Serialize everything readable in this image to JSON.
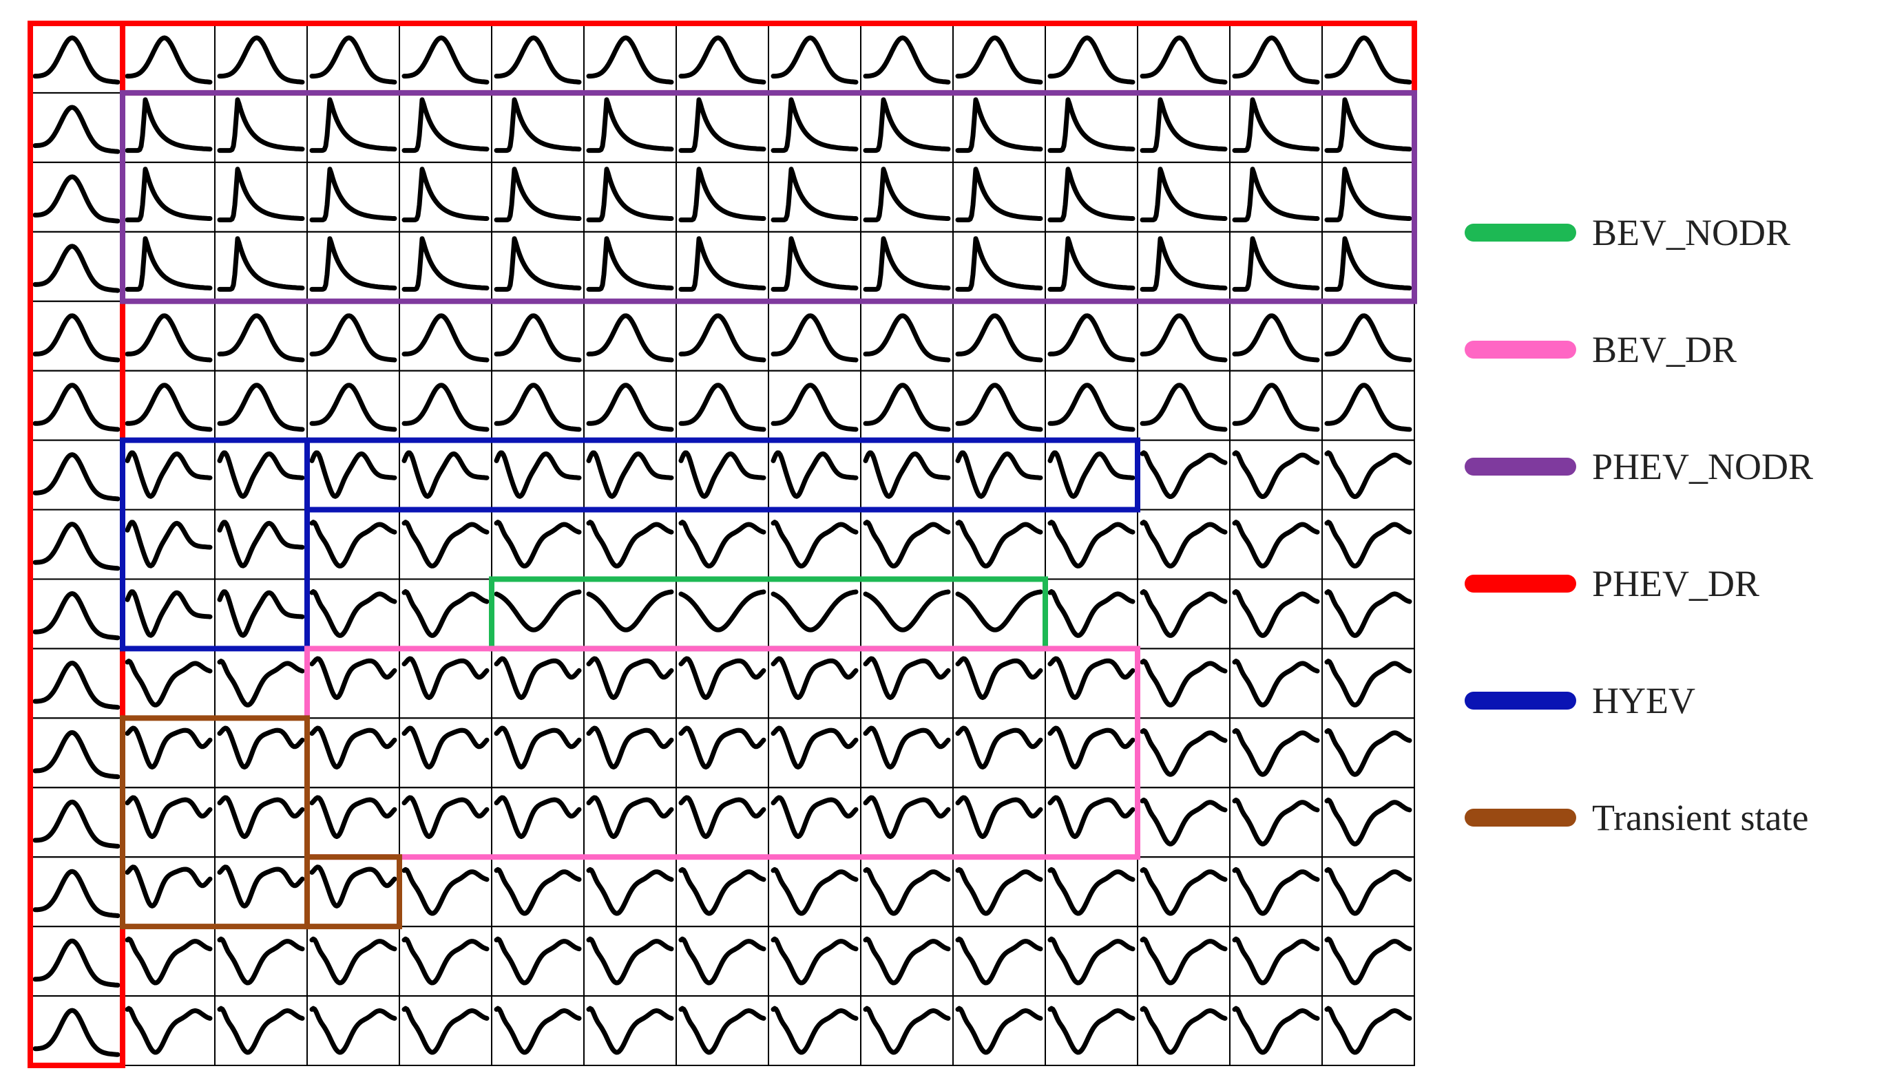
{
  "grid": {
    "columns": 15,
    "rows": 15,
    "line_color": "#000000"
  },
  "regions": [
    {
      "class": "PHEV_DR",
      "color": "#ff0000",
      "col_start": 0,
      "col_end": 1,
      "row_start": 0,
      "row_end": 15
    },
    {
      "class": "PHEV_DR",
      "color": "#ff0000",
      "col_start": 1,
      "col_end": 15,
      "row_start": 0,
      "row_end": 1
    },
    {
      "class": "PHEV_NODR",
      "color": "#7f3a9e",
      "col_start": 1,
      "col_end": 15,
      "row_start": 1,
      "row_end": 4
    },
    {
      "class": "HYEV",
      "color": "#0a14b4",
      "col_start": 1,
      "col_end": 3,
      "row_start": 6,
      "row_end": 9
    },
    {
      "class": "HYEV",
      "color": "#0a14b4",
      "col_start": 3,
      "col_end": 12,
      "row_start": 6,
      "row_end": 7
    },
    {
      "class": "BEV_NODR",
      "color": "#1db954",
      "col_start": 5,
      "col_end": 11,
      "row_start": 8,
      "row_end": 9
    },
    {
      "class": "BEV_DR",
      "color": "#ff66c4",
      "col_start": 3,
      "col_end": 12,
      "row_start": 9,
      "row_end": 12
    },
    {
      "class": "Transient state",
      "color": "#9a4a12",
      "col_start": 1,
      "col_end": 3,
      "row_start": 10,
      "row_end": 13
    },
    {
      "class": "Transient state",
      "color": "#9a4a12",
      "col_start": 3,
      "col_end": 4,
      "row_start": 12,
      "row_end": 13
    }
  ],
  "legend": [
    {
      "label": "BEV_NODR",
      "color": "#1db954"
    },
    {
      "label": "BEV_DR",
      "color": "#ff66c4"
    },
    {
      "label": "PHEV_NODR",
      "color": "#7f3a9e"
    },
    {
      "label": "PHEV_DR",
      "color": "#ff0000"
    },
    {
      "label": "HYEV",
      "color": "#0a14b4"
    },
    {
      "label": "Transient state",
      "color": "#9a4a12"
    }
  ]
}
